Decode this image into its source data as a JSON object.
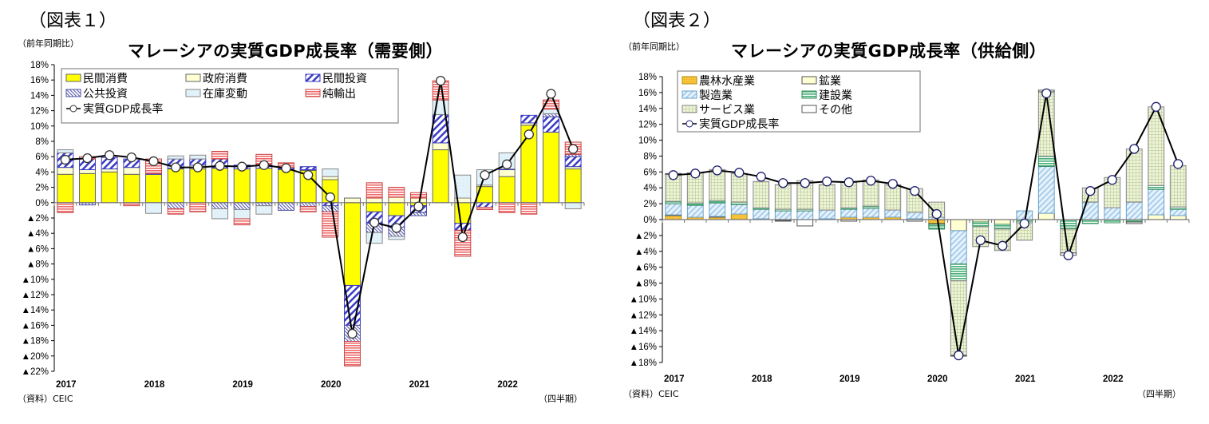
{
  "chart_data": [
    {
      "type": "bar",
      "stacked": true,
      "figure_label": "（図表１）",
      "unit_label": "（前年同期比）",
      "title": "マレーシアの実質GDP成長率（需要側）",
      "source": "（資料）CEIC",
      "period_label": "（四半期）",
      "ylim": [
        -22,
        18
      ],
      "yticks": [
        18,
        16,
        14,
        12,
        10,
        8,
        6,
        4,
        2,
        0,
        -2,
        -4,
        -6,
        -8,
        -10,
        -12,
        -14,
        -16,
        -18,
        -20,
        -22
      ],
      "ytick_labels": [
        "18%",
        "16%",
        "14%",
        "12%",
        "10%",
        "8%",
        "6%",
        "4%",
        "2%",
        "0%",
        "▲2%",
        "▲4%",
        "▲6%",
        "▲8%",
        "▲10%",
        "▲12%",
        "▲14%",
        "▲16%",
        "▲18%",
        "▲20%",
        "▲22%"
      ],
      "year_labels": [
        "2017",
        "2018",
        "2019",
        "2020",
        "2021",
        "2022"
      ],
      "categories": [
        "2017Q1",
        "2017Q2",
        "2017Q3",
        "2017Q4",
        "2018Q1",
        "2018Q2",
        "2018Q3",
        "2018Q4",
        "2019Q1",
        "2019Q2",
        "2019Q3",
        "2019Q4",
        "2020Q1",
        "2020Q2",
        "2020Q3",
        "2020Q4",
        "2021Q1",
        "2021Q2",
        "2021Q3",
        "2021Q4",
        "2022Q1",
        "2022Q2",
        "2022Q3",
        "2022Q4"
      ],
      "legend": [
        "民間消費",
        "政府消費",
        "民間投資",
        "公共投資",
        "在庫変動",
        "純輸出",
        "実質GDP成長率"
      ],
      "series": [
        {
          "name": "民間消費",
          "style": "private-consumption",
          "values": [
            3.7,
            3.8,
            4.0,
            3.7,
            3.7,
            4.4,
            4.4,
            4.5,
            4.4,
            4.5,
            4.3,
            4.2,
            3.0,
            -10.8,
            -1.2,
            -1.7,
            -0.4,
            6.9,
            -2.7,
            2.1,
            3.4,
            10.1,
            9.2,
            4.4
          ]
        },
        {
          "name": "政府消費",
          "style": "government-consumption",
          "values": [
            0.9,
            0.5,
            0.4,
            0.9,
            0.0,
            0.1,
            0.5,
            0.0,
            0.0,
            0.0,
            0.1,
            0.1,
            0.4,
            0.6,
            0.6,
            0.7,
            0.6,
            0.9,
            0.6,
            0.2,
            0.9,
            0.3,
            0.0,
            0.3
          ]
        },
        {
          "name": "民間投資",
          "style": "private-investment",
          "values": [
            1.9,
            1.4,
            1.5,
            1.1,
            0.1,
            1.2,
            0.8,
            1.2,
            0.5,
            0.5,
            0.2,
            0.4,
            -0.4,
            -5.2,
            -1.5,
            -1.5,
            -0.9,
            3.7,
            -0.9,
            -0.6,
            0.1,
            1.0,
            2.0,
            1.3
          ]
        },
        {
          "name": "公共投資",
          "style": "public-investment",
          "values": [
            0.0,
            -0.3,
            0.0,
            0.0,
            0.0,
            -0.8,
            0.0,
            -0.8,
            -0.9,
            -0.4,
            -1.0,
            -0.5,
            -0.8,
            -2.1,
            -1.2,
            -1.2,
            -0.4,
            0.0,
            0.0,
            0.0,
            0.0,
            0.0,
            0.4,
            0.3
          ]
        },
        {
          "name": "在庫変動",
          "style": "inventory-change",
          "values": [
            0.4,
            0.0,
            0.0,
            0.0,
            -1.4,
            0.4,
            0.5,
            -1.3,
            -1.2,
            -1.1,
            0.0,
            0.0,
            1.0,
            0.0,
            -1.4,
            -0.4,
            0.0,
            1.9,
            3.0,
            2.0,
            2.1,
            0.0,
            0.6,
            -0.8
          ]
        },
        {
          "name": "純輸出",
          "style": "net-exports",
          "values": [
            -1.3,
            0.3,
            0.0,
            -0.4,
            1.9,
            -0.7,
            -1.2,
            1.0,
            -0.8,
            1.3,
            0.6,
            -0.7,
            -3.3,
            -3.2,
            2.0,
            1.3,
            0.7,
            2.5,
            -3.4,
            -0.3,
            -1.3,
            -1.5,
            1.2,
            1.6
          ]
        }
      ],
      "line": {
        "name": "実質GDP成長率",
        "values": [
          5.6,
          5.8,
          6.2,
          5.9,
          5.4,
          4.6,
          4.6,
          4.8,
          4.7,
          4.9,
          4.5,
          3.6,
          0.7,
          -17.1,
          -2.6,
          -3.3,
          -0.5,
          15.9,
          -4.5,
          3.6,
          5.0,
          8.9,
          14.2,
          7.0
        ]
      }
    },
    {
      "type": "bar",
      "stacked": true,
      "figure_label": "（図表２）",
      "unit_label": "（前年同期比）",
      "title": "マレーシアの実質GDP成長率（供給側）",
      "source": "（資料）CEIC",
      "period_label": "（四半期）",
      "ylim": [
        -18,
        18
      ],
      "yticks": [
        18,
        16,
        14,
        12,
        10,
        8,
        6,
        4,
        2,
        0,
        -2,
        -4,
        -6,
        -8,
        -10,
        -12,
        -14,
        -16,
        -18
      ],
      "ytick_labels": [
        "18%",
        "16%",
        "14%",
        "12%",
        "10%",
        "8%",
        "6%",
        "4%",
        "2%",
        "0%",
        "▲2%",
        "▲4%",
        "▲6%",
        "▲8%",
        "▲10%",
        "▲12%",
        "▲14%",
        "▲16%",
        "▲18%"
      ],
      "year_labels": [
        "2017",
        "2018",
        "2019",
        "2020",
        "2021",
        "2022"
      ],
      "categories": [
        "2017Q1",
        "2017Q2",
        "2017Q3",
        "2017Q4",
        "2018Q1",
        "2018Q2",
        "2018Q3",
        "2018Q4",
        "2019Q1",
        "2019Q2",
        "2019Q3",
        "2019Q4",
        "2020Q1",
        "2020Q2",
        "2020Q3",
        "2020Q4",
        "2021Q1",
        "2021Q2",
        "2021Q3",
        "2021Q4",
        "2022Q1",
        "2022Q2",
        "2022Q3",
        "2022Q4"
      ],
      "legend": [
        "農林水産業",
        "鉱業",
        "製造業",
        "建設業",
        "サービス業",
        "その他",
        "実質GDP成長率"
      ],
      "series": [
        {
          "name": "農林水産業",
          "style": "agriculture",
          "values": [
            0.5,
            0.3,
            0.3,
            0.7,
            0.1,
            -0.1,
            0.0,
            0.1,
            0.3,
            0.3,
            0.3,
            0.1,
            -0.5,
            0.0,
            0.0,
            0.0,
            0.0,
            0.0,
            0.0,
            0.0,
            0.0,
            0.0,
            0.0,
            0.0
          ]
        },
        {
          "name": "鉱業",
          "style": "mining",
          "values": [
            0.1,
            0.0,
            0.1,
            0.0,
            0.0,
            0.0,
            0.0,
            0.0,
            0.0,
            0.0,
            0.0,
            0.0,
            -0.1,
            -1.4,
            -0.3,
            -0.6,
            0.0,
            0.8,
            0.0,
            0.0,
            0.0,
            0.0,
            0.6,
            0.5
          ]
        },
        {
          "name": "製造業",
          "style": "manufacturing",
          "values": [
            1.4,
            1.5,
            1.7,
            1.2,
            1.2,
            1.1,
            1.1,
            1.1,
            1.0,
            1.1,
            0.9,
            0.8,
            0.3,
            -4.2,
            0.0,
            0.0,
            1.1,
            5.9,
            0.0,
            2.2,
            1.5,
            2.2,
            3.2,
            0.8
          ]
        },
        {
          "name": "建設業",
          "style": "construction",
          "values": [
            0.3,
            0.3,
            0.3,
            0.3,
            0.2,
            0.2,
            0.2,
            0.0,
            0.2,
            0.3,
            0.0,
            0.0,
            -0.6,
            -2.1,
            -0.6,
            -0.6,
            -0.4,
            1.3,
            -1.2,
            -0.5,
            -0.4,
            -0.3,
            0.5,
            0.3
          ]
        },
        {
          "name": "サービス業",
          "style": "services",
          "values": [
            3.4,
            3.8,
            3.9,
            3.6,
            3.3,
            3.1,
            3.6,
            3.2,
            3.2,
            3.3,
            3.2,
            3.0,
            1.9,
            -9.4,
            -2.5,
            -2.7,
            -2.2,
            8.1,
            -3.0,
            1.8,
            3.8,
            6.7,
            9.9,
            5.2
          ]
        },
        {
          "name": "その他",
          "style": "other",
          "values": [
            0.1,
            0.0,
            0.0,
            0.0,
            0.0,
            -0.1,
            -0.8,
            0.0,
            -0.2,
            0.0,
            0.0,
            -0.2,
            0.0,
            -0.1,
            0.0,
            0.0,
            0.0,
            0.2,
            -0.3,
            0.0,
            0.0,
            -0.2,
            0.0,
            0.0
          ]
        }
      ],
      "line": {
        "name": "実質GDP成長率",
        "values": [
          5.6,
          5.8,
          6.2,
          5.9,
          5.4,
          4.6,
          4.6,
          4.8,
          4.7,
          4.9,
          4.5,
          3.6,
          0.7,
          -17.1,
          -2.6,
          -3.3,
          -0.5,
          15.9,
          -4.5,
          3.6,
          5.0,
          8.9,
          14.2,
          7.0
        ]
      }
    }
  ]
}
